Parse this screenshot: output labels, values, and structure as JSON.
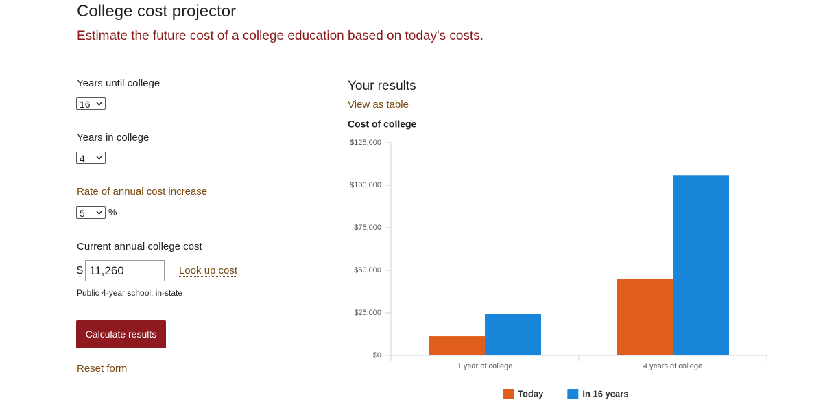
{
  "header": {
    "title": "College cost projector",
    "subtitle": "Estimate the future cost of a college education based on today's costs."
  },
  "form": {
    "years_until_label": "Years until college",
    "years_until": "16",
    "years_in_label": "Years in college",
    "years_in": "4",
    "rate_label": "Rate of annual cost increase",
    "rate": "5",
    "rate_unit": "%",
    "cost_label": "Current annual college cost",
    "currency": "$",
    "cost": "11,260",
    "lookup": "Look up cost",
    "cost_note": "Public 4-year school, in-state",
    "calculate": "Calculate results",
    "reset": "Reset form"
  },
  "results": {
    "heading": "Your results",
    "view_table": "View as table"
  },
  "chart_data": {
    "type": "bar",
    "title": "Cost of college",
    "categories": [
      "1 year of college",
      "4 years of college"
    ],
    "series": [
      {
        "name": "Today",
        "color": "#e05e1b",
        "values": [
          11260,
          45040
        ]
      },
      {
        "name": "In 16 years",
        "color": "#1a86d9",
        "values": [
          24580,
          105940
        ]
      }
    ],
    "ylim": [
      0,
      125000
    ],
    "yticks": [
      {
        "value": 0,
        "label": "$0"
      },
      {
        "value": 25000,
        "label": "$25,000"
      },
      {
        "value": 50000,
        "label": "$50,000"
      },
      {
        "value": 75000,
        "label": "$75,000"
      },
      {
        "value": 100000,
        "label": "$100,000"
      },
      {
        "value": 125000,
        "label": "$125,000"
      }
    ],
    "grid": false,
    "legend": "bottom"
  }
}
